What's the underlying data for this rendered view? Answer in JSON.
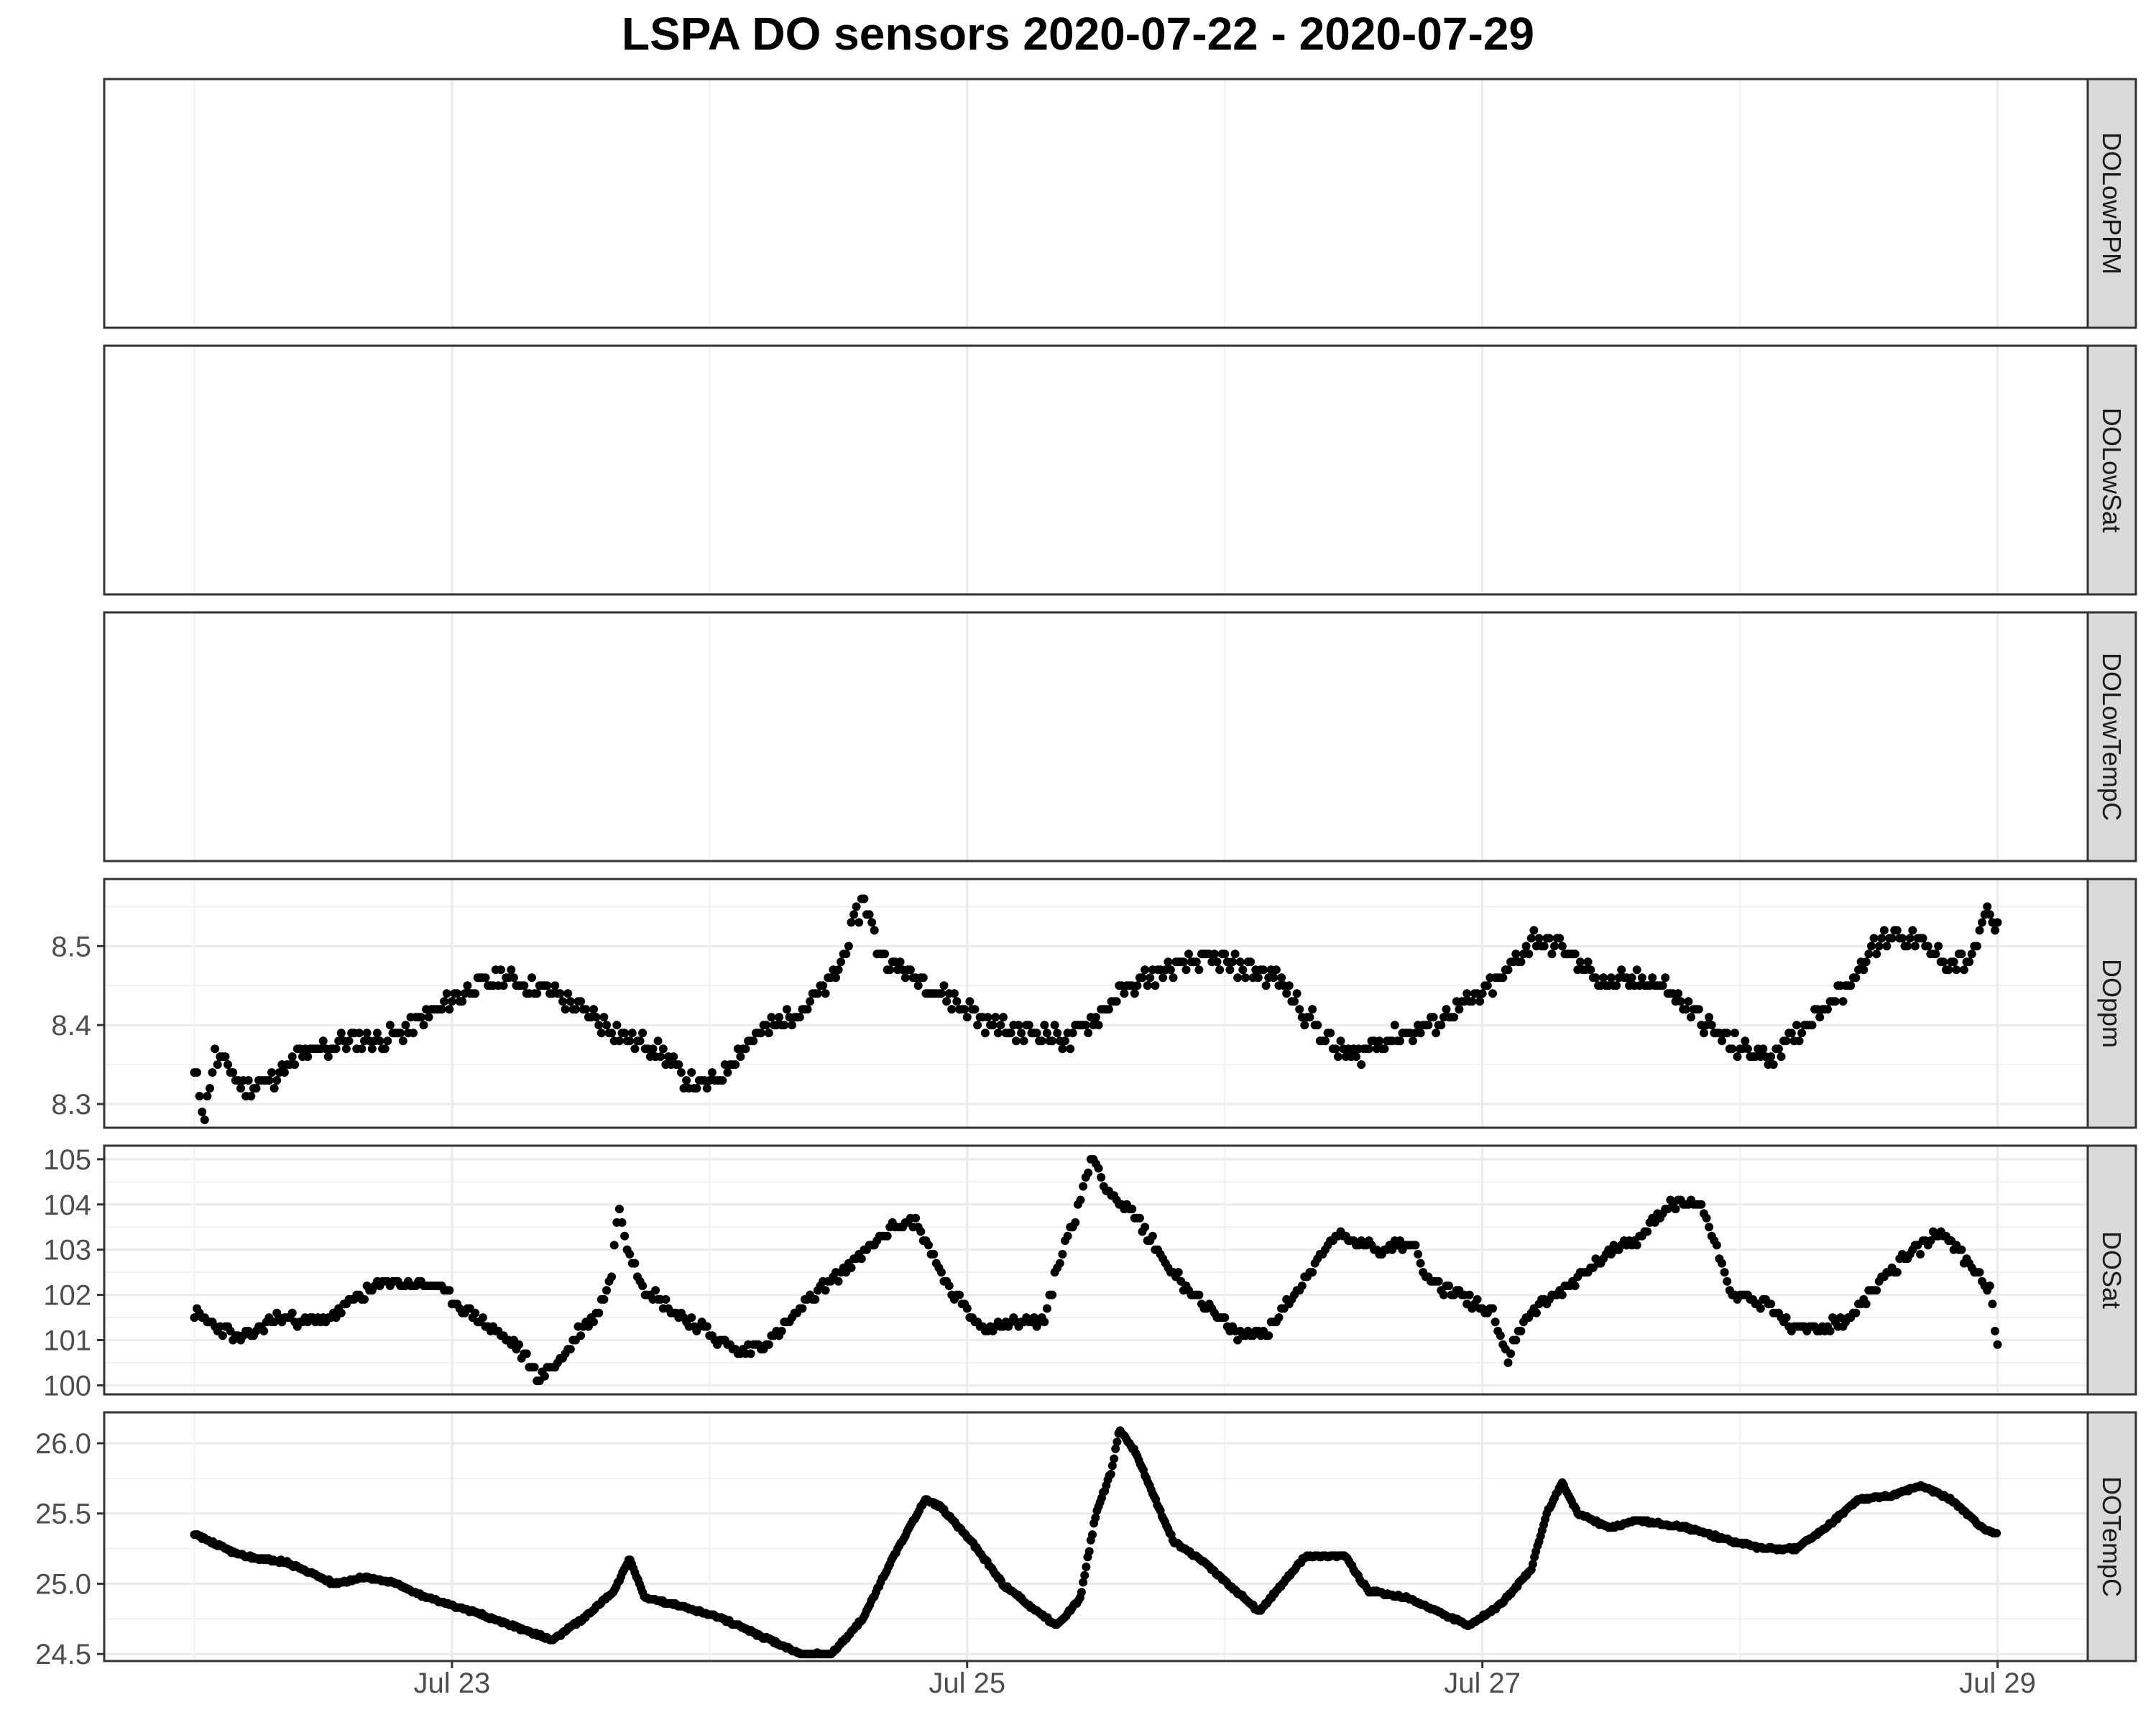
{
  "chart_data": {
    "type": "scatter",
    "title": "LSPA DO sensors 2020-07-22 - 2020-07-29",
    "xlabel": "",
    "ylabel": "",
    "x_tick_labels": [
      "Jul 23",
      "Jul 25",
      "Jul 27",
      "Jul 29"
    ],
    "x_tick_positions": [
      1,
      3,
      5,
      7
    ],
    "x_range": [
      -0.35,
      7.35
    ],
    "x_units": "days since 2020-07-22 00:00",
    "grid": true,
    "point_color": "#000000",
    "panels": [
      {
        "name": "DOLowPPM",
        "ylim": null,
        "y_ticks": [],
        "points": []
      },
      {
        "name": "DOLowSat",
        "ylim": null,
        "y_ticks": [],
        "points": []
      },
      {
        "name": "DOLowTempC",
        "ylim": null,
        "y_ticks": [],
        "points": []
      },
      {
        "name": "DOppm",
        "ylim": [
          8.27,
          8.585
        ],
        "y_ticks": [
          8.3,
          8.4,
          8.5
        ],
        "y_tick_labels": [
          "8.3",
          "8.4",
          "8.5"
        ],
        "points": [
          [
            0.0,
            8.34
          ],
          [
            0.04,
            8.29
          ],
          [
            0.08,
            8.36
          ],
          [
            0.12,
            8.35
          ],
          [
            0.2,
            8.32
          ],
          [
            0.3,
            8.33
          ],
          [
            0.4,
            8.36
          ],
          [
            0.5,
            8.37
          ],
          [
            0.6,
            8.38
          ],
          [
            0.7,
            8.38
          ],
          [
            0.8,
            8.39
          ],
          [
            0.9,
            8.41
          ],
          [
            1.0,
            8.43
          ],
          [
            1.1,
            8.45
          ],
          [
            1.2,
            8.46
          ],
          [
            1.3,
            8.45
          ],
          [
            1.4,
            8.44
          ],
          [
            1.5,
            8.42
          ],
          [
            1.6,
            8.4
          ],
          [
            1.7,
            8.38
          ],
          [
            1.8,
            8.37
          ],
          [
            1.9,
            8.33
          ],
          [
            2.0,
            8.32
          ],
          [
            2.1,
            8.36
          ],
          [
            2.2,
            8.39
          ],
          [
            2.3,
            8.41
          ],
          [
            2.4,
            8.43
          ],
          [
            2.5,
            8.47
          ],
          [
            2.55,
            8.52
          ],
          [
            2.6,
            8.56
          ],
          [
            2.65,
            8.5
          ],
          [
            2.7,
            8.48
          ],
          [
            2.8,
            8.46
          ],
          [
            2.9,
            8.44
          ],
          [
            3.0,
            8.42
          ],
          [
            3.1,
            8.4
          ],
          [
            3.2,
            8.39
          ],
          [
            3.3,
            8.39
          ],
          [
            3.4,
            8.38
          ],
          [
            3.5,
            8.41
          ],
          [
            3.6,
            8.44
          ],
          [
            3.7,
            8.46
          ],
          [
            3.8,
            8.47
          ],
          [
            3.9,
            8.48
          ],
          [
            4.0,
            8.48
          ],
          [
            4.1,
            8.47
          ],
          [
            4.2,
            8.46
          ],
          [
            4.3,
            8.42
          ],
          [
            4.4,
            8.38
          ],
          [
            4.5,
            8.36
          ],
          [
            4.6,
            8.38
          ],
          [
            4.7,
            8.39
          ],
          [
            4.8,
            8.4
          ],
          [
            4.9,
            8.42
          ],
          [
            5.0,
            8.44
          ],
          [
            5.1,
            8.47
          ],
          [
            5.2,
            8.51
          ],
          [
            5.3,
            8.5
          ],
          [
            5.4,
            8.47
          ],
          [
            5.5,
            8.45
          ],
          [
            5.6,
            8.46
          ],
          [
            5.7,
            8.45
          ],
          [
            5.8,
            8.42
          ],
          [
            5.9,
            8.39
          ],
          [
            6.0,
            8.37
          ],
          [
            6.1,
            8.36
          ],
          [
            6.2,
            8.38
          ],
          [
            6.3,
            8.42
          ],
          [
            6.4,
            8.44
          ],
          [
            6.5,
            8.49
          ],
          [
            6.6,
            8.52
          ],
          [
            6.7,
            8.5
          ],
          [
            6.8,
            8.48
          ],
          [
            6.9,
            8.48
          ],
          [
            6.95,
            8.54
          ],
          [
            7.0,
            8.52
          ]
        ],
        "raw_x_scale": 1.0
      },
      {
        "name": "DOSat",
        "ylim": [
          99.8,
          105.3
        ],
        "y_ticks": [
          100,
          101,
          102,
          103,
          104,
          105
        ],
        "y_tick_labels": [
          "100",
          "101",
          "102",
          "103",
          "104",
          "105"
        ],
        "points": []
      },
      {
        "name": "DOTempC",
        "ylim": [
          24.45,
          26.22
        ],
        "y_ticks": [
          24.5,
          25.0,
          25.5,
          26.0
        ],
        "y_tick_labels": [
          "24.5",
          "25.0",
          "25.5",
          "26.0"
        ],
        "points": []
      }
    ]
  }
}
